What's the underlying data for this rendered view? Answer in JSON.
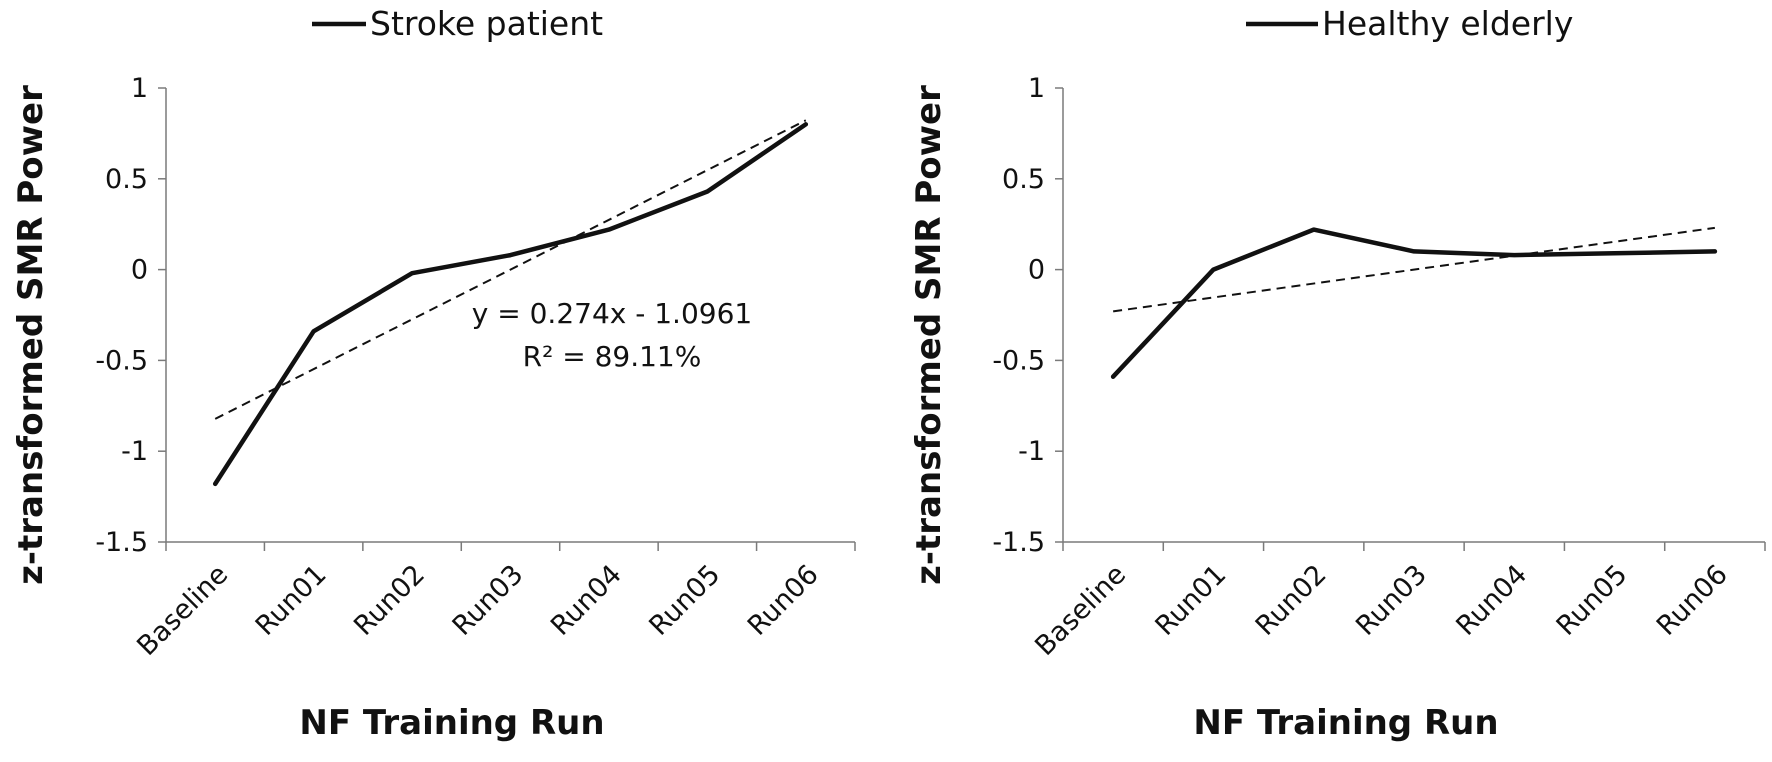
{
  "chart_data": [
    {
      "type": "line",
      "legend": "Stroke patient",
      "categories": [
        "Baseline",
        "Run01",
        "Run02",
        "Run03",
        "Run04",
        "Run05",
        "Run06"
      ],
      "series": [
        {
          "name": "Stroke patient",
          "values": [
            -1.18,
            -0.34,
            -0.02,
            0.08,
            0.22,
            0.43,
            0.8
          ]
        }
      ],
      "trendline": {
        "start": -0.822,
        "end": 0.822
      },
      "annotation": {
        "equation": "y = 0.274x - 1.0961",
        "r_squared": "R² = 89.11%"
      },
      "xlabel": "NF Training Run",
      "ylabel": "z-transformed SMR Power",
      "ylim": [
        -1.5,
        1
      ],
      "yticks": [
        -1.5,
        -1,
        -0.5,
        0,
        0.5,
        1
      ],
      "ytick_labels": [
        "-1.5",
        "-1",
        "-0.5",
        "0",
        "0.5",
        "1"
      ]
    },
    {
      "type": "line",
      "legend": "Healthy elderly",
      "categories": [
        "Baseline",
        "Run01",
        "Run02",
        "Run03",
        "Run04",
        "Run05",
        "Run06"
      ],
      "series": [
        {
          "name": "Healthy elderly",
          "values": [
            -0.59,
            0.0,
            0.22,
            0.1,
            0.08,
            0.09,
            0.1
          ]
        }
      ],
      "trendline": {
        "start": -0.23,
        "end": 0.23
      },
      "xlabel": "NF Training Run",
      "ylabel": "z-transformed SMR Power",
      "ylim": [
        -1.5,
        1
      ],
      "yticks": [
        -1.5,
        -1,
        -0.5,
        0,
        0.5,
        1
      ],
      "ytick_labels": [
        "-1.5",
        "-1",
        "-0.5",
        "0",
        "0.5",
        "1"
      ]
    }
  ]
}
